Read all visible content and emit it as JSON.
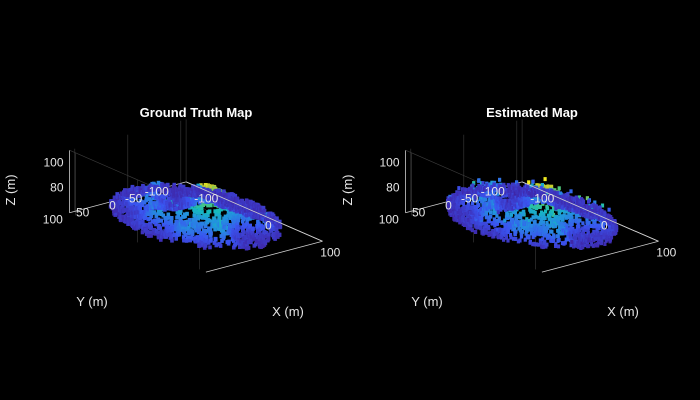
{
  "chart_data": [
    {
      "type": "scatter",
      "title": "Ground Truth Map",
      "xlabel": "X (m)",
      "ylabel": "Y (m)",
      "zlabel": "Z (m)",
      "xticks": [
        "-100",
        "0",
        "100"
      ],
      "yticks": [
        "100",
        "50",
        "0",
        "-50",
        "-100"
      ],
      "zticks": [
        "100",
        "80"
      ],
      "xlim": [
        -110,
        110
      ],
      "ylim": [
        -110,
        110
      ],
      "zlim": [
        60,
        110
      ],
      "grid": true,
      "colormap": "parula",
      "colors": {
        "low": "#3e3ae6",
        "mid": "#1fb3c6",
        "high": "#f5e23c",
        "background": "#000000"
      }
    },
    {
      "type": "scatter",
      "title": "Estimated Map",
      "xlabel": "X (m)",
      "ylabel": "Y (m)",
      "zlabel": "Z (m)",
      "xticks": [
        "-100",
        "0",
        "100"
      ],
      "yticks": [
        "100",
        "50",
        "0",
        "-50",
        "-100"
      ],
      "zticks": [
        "100",
        "80"
      ],
      "xlim": [
        -110,
        110
      ],
      "ylim": [
        -110,
        110
      ],
      "zlim": [
        60,
        110
      ],
      "grid": true,
      "colormap": "parula",
      "colors": {
        "low": "#3e3ae6",
        "mid": "#1fb3c6",
        "high": "#f5e23c",
        "background": "#000000"
      }
    }
  ]
}
